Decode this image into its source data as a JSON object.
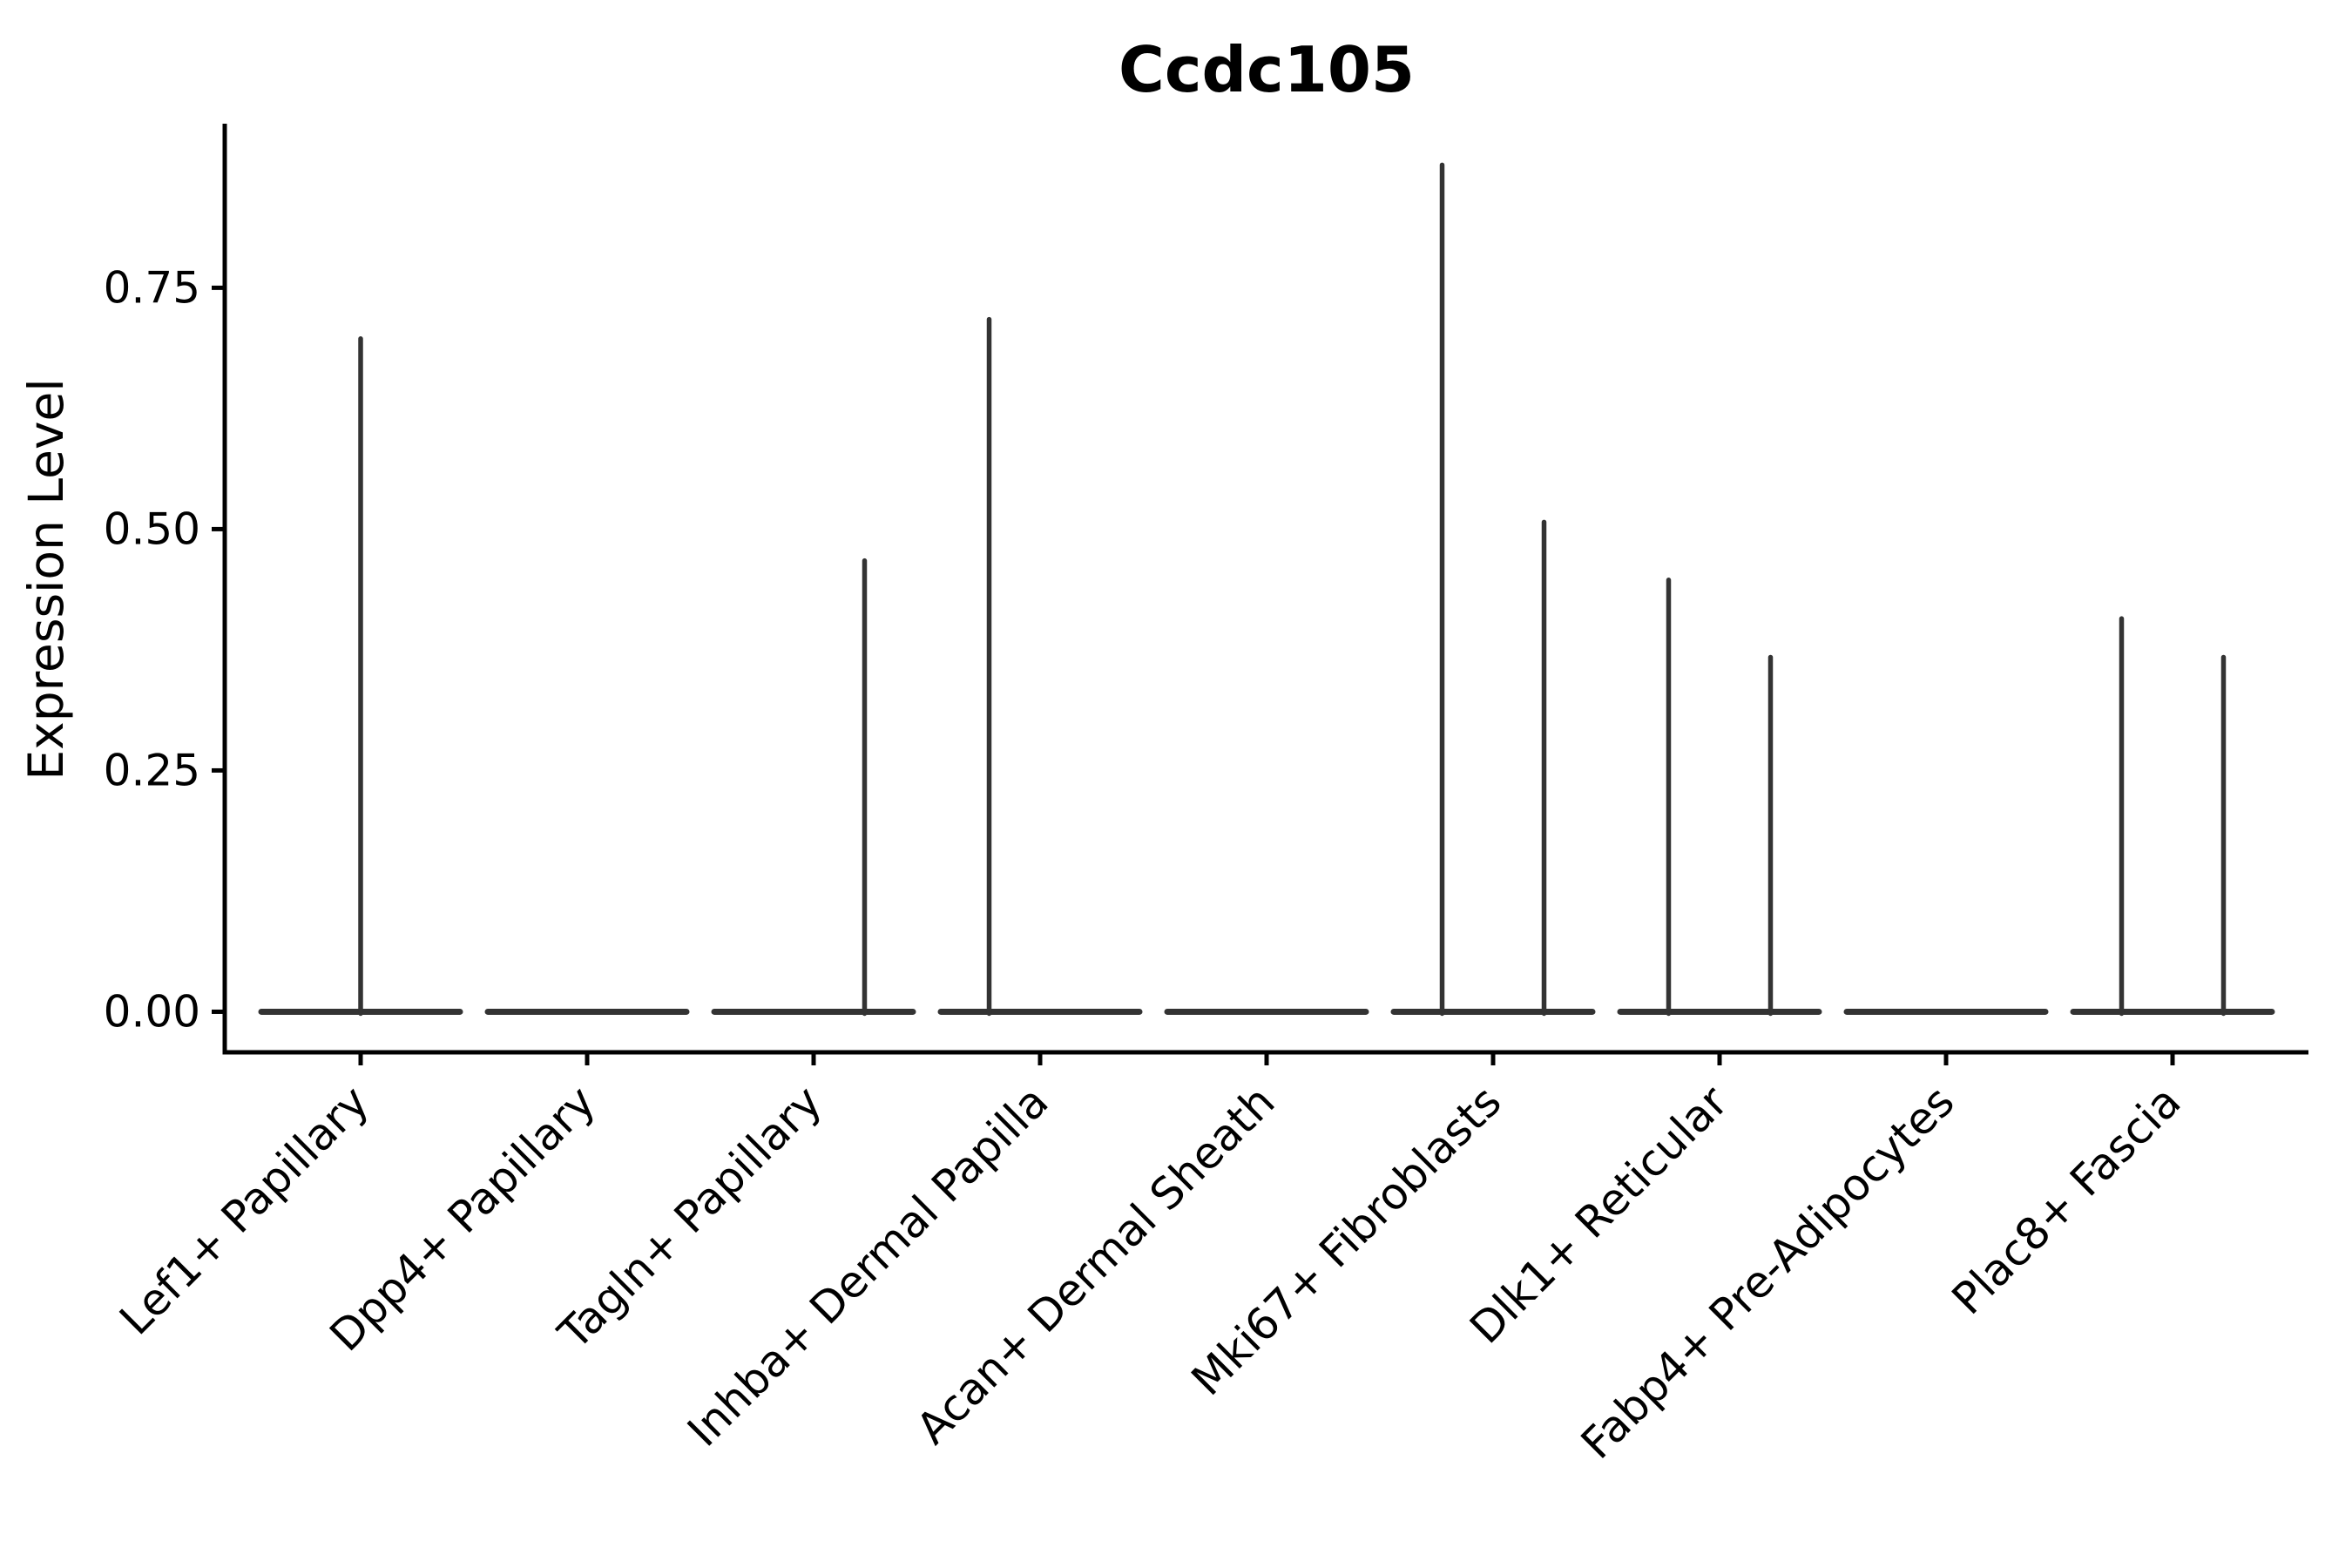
{
  "figure": {
    "background": "#ffffff"
  },
  "chart_data": {
    "type": "violin",
    "title": "Ccdc105",
    "ylabel": "Expression Level",
    "xlabel": "",
    "legend": "none",
    "grid": false,
    "ylim": [
      -0.042,
      0.92
    ],
    "yticks": [
      {
        "value": 0.0,
        "label": "0.00"
      },
      {
        "value": 0.25,
        "label": "0.25"
      },
      {
        "value": 0.5,
        "label": "0.50"
      },
      {
        "value": 0.75,
        "label": "0.75"
      }
    ],
    "categories": [
      "Lef1+ Papillary",
      "Dpp4+ Papillary",
      "Tagln+ Papillary",
      "Inhba+ Dermal Papilla",
      "Acan+ Dermal Sheath",
      "Mki67+ Fibroblasts",
      "Dlk1+ Reticular",
      "Fabp4+ Pre-Adipocytes",
      "Plac8+ Fascia"
    ],
    "x_tick_rotation_deg": 45,
    "violins": [
      {
        "category": "Lef1+ Papillary",
        "body": "flat-at-zero",
        "spikes": [
          {
            "x_offset_frac": 0.0,
            "max": 0.7
          }
        ]
      },
      {
        "category": "Dpp4+ Papillary",
        "body": "flat-at-zero",
        "spikes": []
      },
      {
        "category": "Tagln+ Papillary",
        "body": "flat-at-zero",
        "spikes": [
          {
            "x_offset_frac": 0.225,
            "max": 0.47
          }
        ]
      },
      {
        "category": "Inhba+ Dermal Papilla",
        "body": "flat-at-zero",
        "spikes": [
          {
            "x_offset_frac": -0.225,
            "max": 0.72
          }
        ]
      },
      {
        "category": "Acan+ Dermal Sheath",
        "body": "flat-at-zero",
        "spikes": []
      },
      {
        "category": "Mki67+ Fibroblasts",
        "body": "flat-at-zero",
        "spikes": [
          {
            "x_offset_frac": -0.225,
            "max": 0.88
          },
          {
            "x_offset_frac": 0.225,
            "max": 0.51
          }
        ]
      },
      {
        "category": "Dlk1+ Reticular",
        "body": "flat-at-zero",
        "spikes": [
          {
            "x_offset_frac": -0.225,
            "max": 0.45
          },
          {
            "x_offset_frac": 0.225,
            "max": 0.37
          }
        ]
      },
      {
        "category": "Fabp4+ Pre-Adipocytes",
        "body": "flat-at-zero",
        "spikes": []
      },
      {
        "category": "Plac8+ Fascia",
        "body": "flat-at-zero",
        "spikes": [
          {
            "x_offset_frac": -0.225,
            "max": 0.41
          },
          {
            "x_offset_frac": 0.225,
            "max": 0.37
          }
        ]
      }
    ],
    "colors": {
      "violin": "#333333",
      "axis": "#000000",
      "text": "#000000",
      "background": "#ffffff"
    }
  }
}
